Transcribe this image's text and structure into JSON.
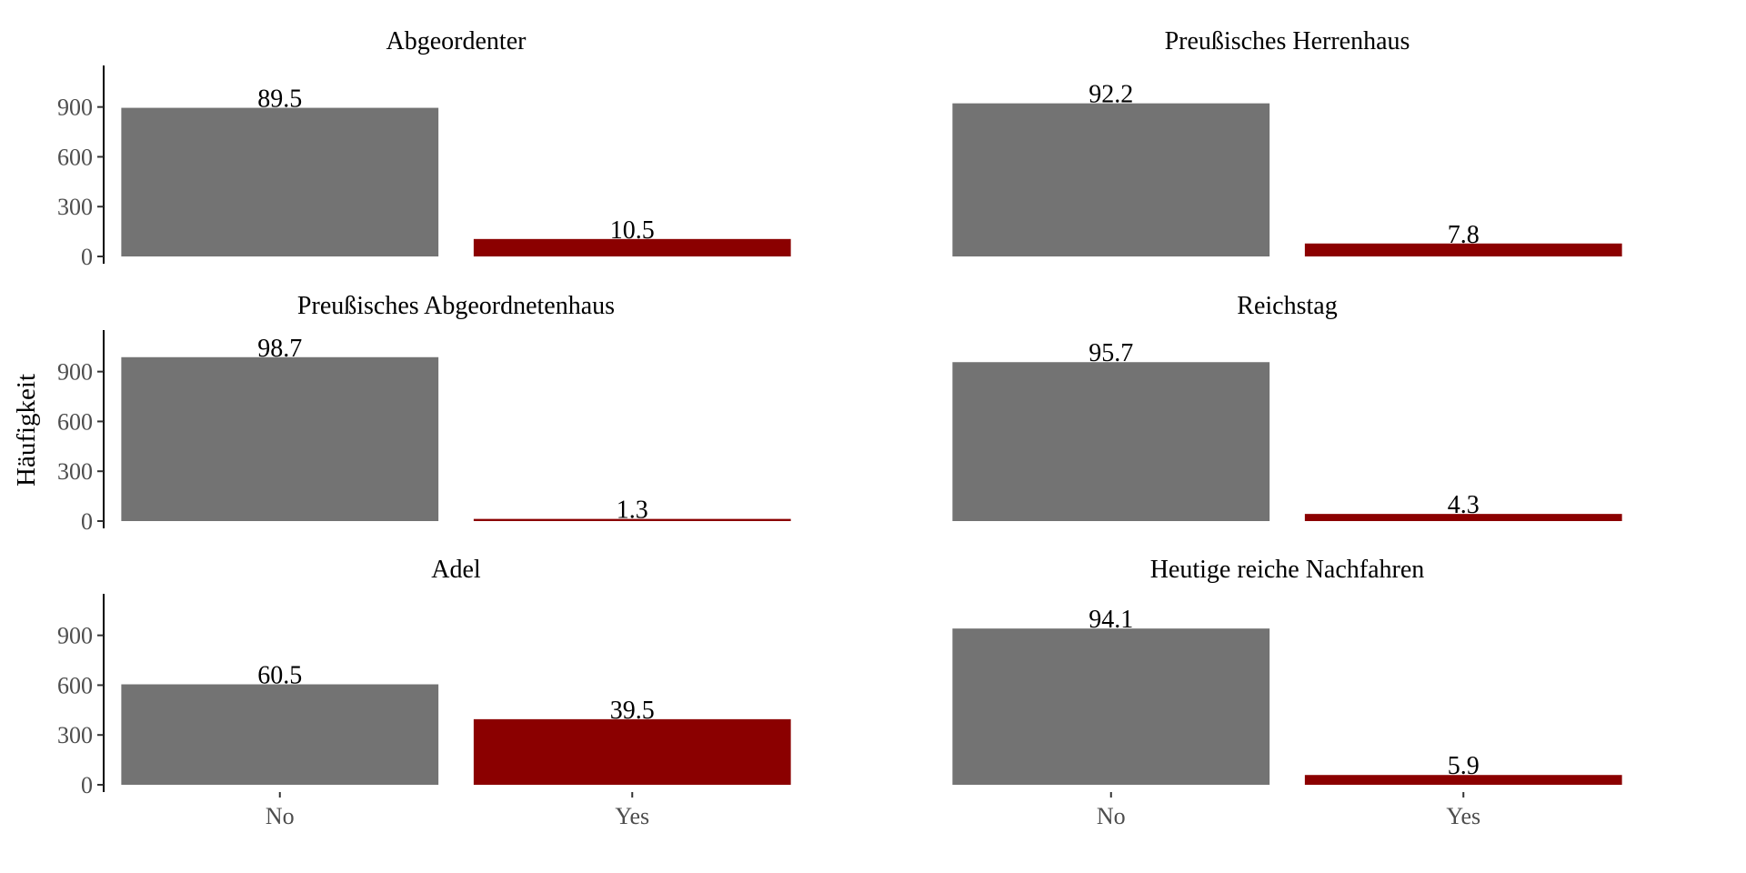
{
  "chart_data": {
    "type": "bar",
    "layout": "facet-grid-3x2",
    "ylabel": "Häufigkeit",
    "xlabel": "",
    "categories": [
      "No",
      "Yes"
    ],
    "ylim": [
      0,
      1150
    ],
    "yticks": [
      0,
      300,
      600,
      900
    ],
    "colors": {
      "No": "#737373",
      "Yes": "#8b0000"
    },
    "grid": false,
    "legend": "none",
    "panels": [
      {
        "title": "Abgeordenter",
        "counts": [
          895,
          105
        ],
        "labels": [
          "89.5",
          "10.5"
        ]
      },
      {
        "title": "Preußisches Herrenhaus",
        "counts": [
          922,
          78
        ],
        "labels": [
          "92.2",
          "7.8"
        ]
      },
      {
        "title": "Preußisches Abgeordnetenhaus",
        "counts": [
          987,
          13
        ],
        "labels": [
          "98.7",
          "1.3"
        ]
      },
      {
        "title": "Reichstag",
        "counts": [
          957,
          43
        ],
        "labels": [
          "95.7",
          "4.3"
        ]
      },
      {
        "title": "Adel",
        "counts": [
          605,
          395
        ],
        "labels": [
          "60.5",
          "39.5"
        ]
      },
      {
        "title": "Heutige reiche Nachfahren",
        "counts": [
          941,
          59
        ],
        "labels": [
          "94.1",
          "5.9"
        ]
      }
    ]
  }
}
